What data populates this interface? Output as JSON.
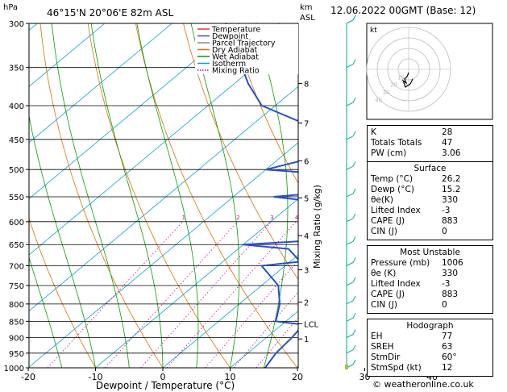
{
  "header": {
    "hpa": "hPa",
    "location": "46°15'N  20°06'E  82m  ASL",
    "km": "km",
    "asl": "ASL",
    "datetime": "12.06.2022  00GMT  (Base: 12)"
  },
  "chart_data": {
    "type": "skew-t log-p",
    "xlabel": "Dewpoint / Temperature (°C)",
    "ylabel_right": "Mixing Ratio (g/kg)",
    "ylabel_left": "hPa",
    "pressure_levels": [
      300,
      350,
      400,
      450,
      500,
      550,
      600,
      650,
      700,
      750,
      800,
      850,
      900,
      950,
      1000
    ],
    "temperature_ticks": [
      -30,
      -20,
      -10,
      0,
      10,
      20,
      30,
      40
    ],
    "xlim": [
      -35,
      40
    ],
    "ylim": [
      1000,
      300
    ],
    "km_ticks": [
      {
        "label": "8",
        "p": 370
      },
      {
        "label": "7",
        "p": 425
      },
      {
        "label": "6",
        "p": 485
      },
      {
        "label": "5",
        "p": 552
      },
      {
        "label": "4",
        "p": 630
      },
      {
        "label": "3",
        "p": 710
      },
      {
        "label": "2",
        "p": 795
      },
      {
        "label": "LCL",
        "p": 857
      },
      {
        "label": "1",
        "p": 904
      }
    ],
    "mixing_ratio_labels": [
      "1",
      "2",
      "3",
      "4",
      "6",
      "8",
      "10",
      "15",
      "20",
      "25"
    ],
    "mixing_ratio_values": [
      1,
      2,
      3,
      4,
      6,
      8,
      10,
      15,
      20,
      25
    ],
    "legend": [
      "Temperature",
      "Dewpoint",
      "Parcel Trajectory",
      "Dry Adiabat",
      "Wet Adiabat",
      "Isotherm",
      "Mixing Ratio"
    ],
    "legend_colors": [
      "#e8352a",
      "#2850c8",
      "#888888",
      "#e07000",
      "#00a000",
      "#00a0d8",
      "#d00090"
    ],
    "series": [
      {
        "name": "Temperature",
        "points": [
          [
            1000,
            26.2
          ],
          [
            950,
            21.5
          ],
          [
            900,
            18.5
          ],
          [
            850,
            17.2
          ],
          [
            800,
            13.5
          ],
          [
            750,
            9.5
          ],
          [
            700,
            5.8
          ],
          [
            650,
            2.0
          ],
          [
            600,
            -1.5
          ],
          [
            550,
            -5.5
          ],
          [
            500,
            -9.5
          ],
          [
            450,
            -16.5
          ],
          [
            400,
            -23.5
          ],
          [
            350,
            -31.5
          ],
          [
            300,
            -40.0
          ]
        ]
      },
      {
        "name": "Dewpoint",
        "points": [
          [
            1000,
            15.2
          ],
          [
            950,
            14.2
          ],
          [
            900,
            13.8
          ],
          [
            860,
            13.2
          ],
          [
            850,
            8.5
          ],
          [
            800,
            6.0
          ],
          [
            750,
            2.5
          ],
          [
            700,
            -3.5
          ],
          [
            690,
            1.5
          ],
          [
            660,
            -2.5
          ],
          [
            650,
            -10.0
          ],
          [
            640,
            0.5
          ],
          [
            600,
            -2.0
          ],
          [
            560,
            -6.5
          ],
          [
            550,
            -14.0
          ],
          [
            540,
            -6.0
          ],
          [
            510,
            -8.0
          ],
          [
            500,
            -20.0
          ],
          [
            460,
            -10.0
          ],
          [
            430,
            -21.0
          ],
          [
            400,
            -32.0
          ],
          [
            370,
            -38.0
          ],
          [
            300,
            -52.0
          ]
        ]
      },
      {
        "name": "Parcel Trajectory",
        "points": [
          [
            1000,
            26.2
          ],
          [
            857,
            18.0
          ],
          [
            800,
            16.0
          ],
          [
            700,
            10.5
          ],
          [
            600,
            3.5
          ],
          [
            500,
            -5.0
          ],
          [
            400,
            -15.0
          ],
          [
            300,
            -32.0
          ]
        ]
      }
    ],
    "wind_barb_levels": [
      1000,
      950,
      900,
      850,
      800,
      750,
      700,
      650,
      600,
      550,
      500,
      450,
      400,
      350,
      300
    ],
    "hodograph_label": "kt",
    "hodograph_rings": [
      "10",
      "20",
      "30",
      "40"
    ]
  },
  "indices": {
    "rows1": [
      {
        "k": "K",
        "v": "28"
      },
      {
        "k": "Totals Totals",
        "v": "47"
      },
      {
        "k": "PW (cm)",
        "v": "3.06"
      }
    ],
    "surface_title": "Surface",
    "surface": [
      {
        "k": "Temp (°C)",
        "v": "26.2"
      },
      {
        "k": "Dewp (°C)",
        "v": "15.2"
      },
      {
        "k": "θe(K)",
        "v": "330"
      },
      {
        "k": "Lifted Index",
        "v": "-3"
      },
      {
        "k": "CAPE (J)",
        "v": "883"
      },
      {
        "k": "CIN (J)",
        "v": "0"
      }
    ],
    "mu_title": "Most Unstable",
    "mu": [
      {
        "k": "Pressure (mb)",
        "v": "1006"
      },
      {
        "k": "θe (K)",
        "v": "330"
      },
      {
        "k": "Lifted Index",
        "v": "-3"
      },
      {
        "k": "CAPE (J)",
        "v": "883"
      },
      {
        "k": "CIN (J)",
        "v": "0"
      }
    ],
    "hodo_title": "Hodograph",
    "hodo": [
      {
        "k": "EH",
        "v": "77"
      },
      {
        "k": "SREH",
        "v": "63"
      },
      {
        "k": "StmDir",
        "v": "60°"
      },
      {
        "k": "StmSpd (kt)",
        "v": "12"
      }
    ]
  },
  "footer": "© weatheronline.co.uk"
}
